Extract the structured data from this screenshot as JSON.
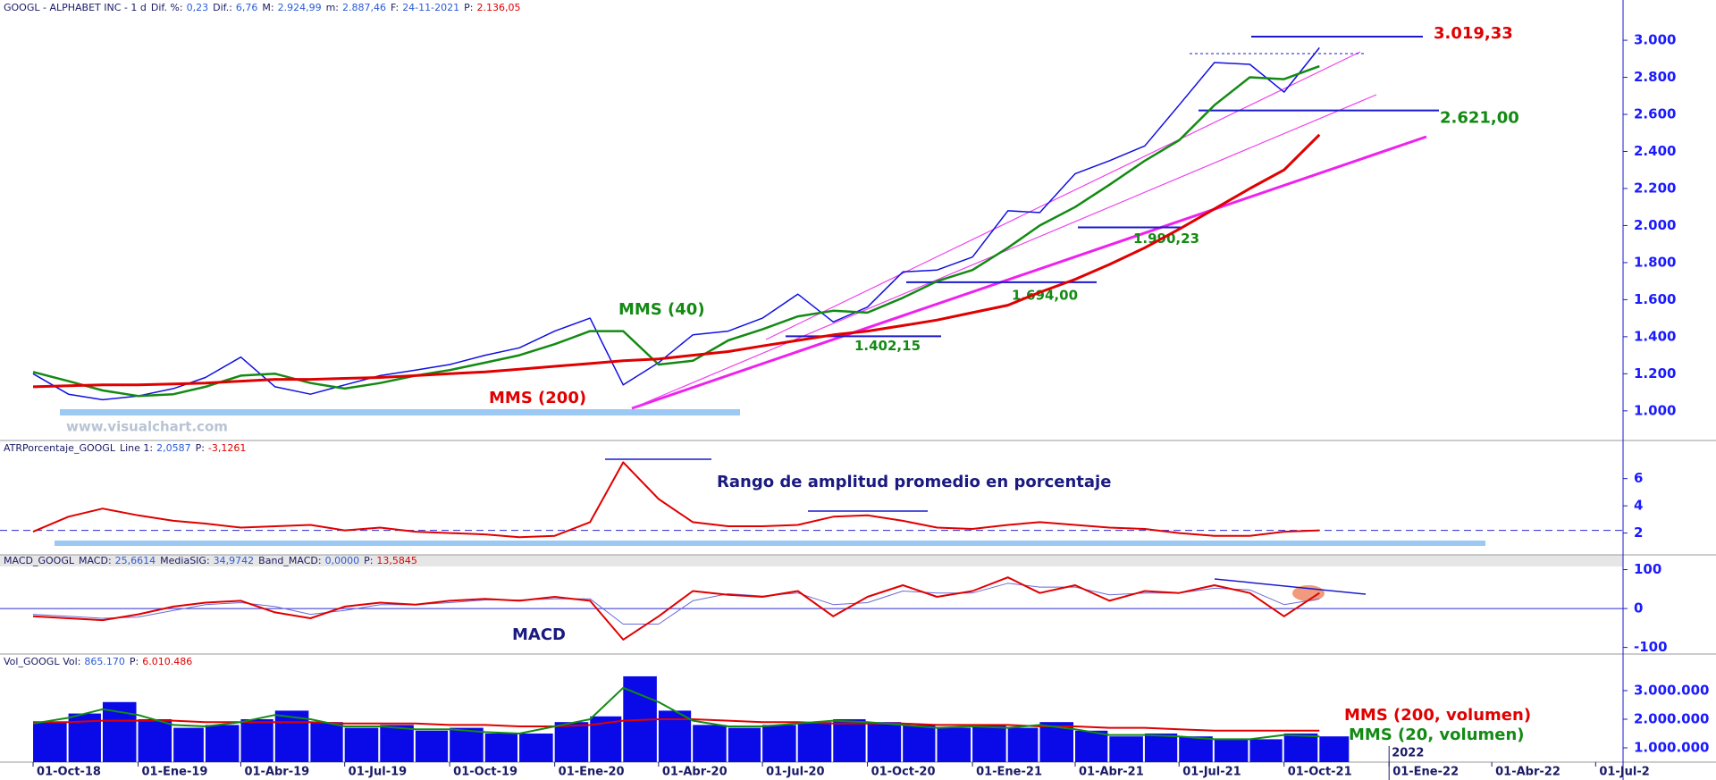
{
  "chart_data": [
    {
      "type": "line",
      "title": "GOOGL - ALPHABET INC - 1 d",
      "stats": [
        {
          "key": "Dif. %:",
          "value": "0,23"
        },
        {
          "key": "Dif.:",
          "value": "6,76"
        },
        {
          "key": "M:",
          "value": "2.924,99"
        },
        {
          "key": "m:",
          "value": "2.887,46"
        },
        {
          "key": "F:",
          "value": "24-11-2021"
        },
        {
          "key": "P:",
          "value": "2.136,05"
        }
      ],
      "watermark": "www.visualchart.com",
      "xlim": [
        "2018-09-02",
        "2022-07-25"
      ],
      "x": [
        "2018-10-01",
        "2018-11-01",
        "2018-12-01",
        "2019-01-01",
        "2019-02-01",
        "2019-03-01",
        "2019-04-01",
        "2019-05-01",
        "2019-06-01",
        "2019-07-01",
        "2019-08-01",
        "2019-09-01",
        "2019-10-01",
        "2019-11-01",
        "2019-12-01",
        "2020-01-01",
        "2020-02-01",
        "2020-03-01",
        "2020-04-01",
        "2020-05-01",
        "2020-06-01",
        "2020-07-01",
        "2020-08-01",
        "2020-09-01",
        "2020-10-01",
        "2020-11-01",
        "2020-12-01",
        "2021-01-01",
        "2021-02-01",
        "2021-03-01",
        "2021-04-01",
        "2021-05-01",
        "2021-06-01",
        "2021-07-01",
        "2021-08-01",
        "2021-09-01",
        "2021-10-01",
        "2021-11-01"
      ],
      "series": [
        {
          "name": "GOOGL",
          "color": "#1010e0",
          "width": 1.5,
          "values": [
            1200,
            1090,
            1060,
            1080,
            1120,
            1180,
            1290,
            1130,
            1090,
            1140,
            1190,
            1220,
            1250,
            1300,
            1340,
            1430,
            1500,
            1140,
            1260,
            1410,
            1430,
            1500,
            1630,
            1480,
            1560,
            1750,
            1760,
            1830,
            2080,
            2070,
            2280,
            2350,
            2430,
            2650,
            2880,
            2870,
            2720,
            2960
          ]
        },
        {
          "name": "MMS (40)",
          "color": "#138a13",
          "width": 2.5,
          "values": [
            1210,
            1160,
            1110,
            1080,
            1090,
            1130,
            1190,
            1200,
            1150,
            1120,
            1150,
            1190,
            1220,
            1260,
            1300,
            1360,
            1430,
            1430,
            1250,
            1270,
            1380,
            1440,
            1510,
            1540,
            1530,
            1610,
            1700,
            1760,
            1880,
            2000,
            2100,
            2220,
            2350,
            2460,
            2650,
            2800,
            2790,
            2860
          ]
        },
        {
          "name": "MMS (200)",
          "color": "#e00000",
          "width": 3,
          "values": [
            1130,
            1135,
            1140,
            1140,
            1145,
            1150,
            1160,
            1170,
            1170,
            1175,
            1180,
            1190,
            1200,
            1210,
            1225,
            1240,
            1255,
            1270,
            1280,
            1300,
            1320,
            1350,
            1380,
            1410,
            1430,
            1460,
            1490,
            1530,
            1570,
            1640,
            1710,
            1790,
            1880,
            1980,
            2090,
            2200,
            2300,
            2490
          ]
        }
      ],
      "levels": [
        {
          "value": 3019.33,
          "label": "3.019,33",
          "color": "#e00000"
        },
        {
          "value": 2621,
          "label": "2.621,00",
          "color": "#138a13"
        },
        {
          "value": 1990.23,
          "label": "1.990,23",
          "color": "#138a13"
        },
        {
          "value": 1694,
          "label": "1.694,00",
          "color": "#138a13"
        },
        {
          "value": 1402.15,
          "label": "1.402,15",
          "color": "#138a13"
        }
      ],
      "ylim": [
        840,
        3145
      ],
      "yticks": [
        {
          "value": 1000,
          "label": "1.000"
        },
        {
          "value": 1200,
          "label": "1.200"
        },
        {
          "value": 1400,
          "label": "1.400"
        },
        {
          "value": 1600,
          "label": "1.600"
        },
        {
          "value": 1800,
          "label": "1.800"
        },
        {
          "value": 2000,
          "label": "2.000"
        },
        {
          "value": 2200,
          "label": "2.200"
        },
        {
          "value": 2400,
          "label": "2.400"
        },
        {
          "value": 2600,
          "label": "2.600"
        },
        {
          "value": 2800,
          "label": "2.800"
        },
        {
          "value": 3000,
          "label": "3.000"
        }
      ]
    },
    {
      "type": "line",
      "title": "ATRPorcentaje_GOOGL",
      "stats": [
        {
          "key": "Line 1:",
          "value": "2,0587"
        },
        {
          "key": "P:",
          "value": "-3,1261"
        }
      ],
      "annotation": "Rango de amplitud promedio en porcentaje",
      "xlim": [
        "2018-09-02",
        "2022-07-25"
      ],
      "x": [
        "2018-10-01",
        "2018-11-01",
        "2018-12-01",
        "2019-01-01",
        "2019-02-01",
        "2019-03-01",
        "2019-04-01",
        "2019-05-01",
        "2019-06-01",
        "2019-07-01",
        "2019-08-01",
        "2019-09-01",
        "2019-10-01",
        "2019-11-01",
        "2019-12-01",
        "2020-01-01",
        "2020-02-01",
        "2020-03-01",
        "2020-04-01",
        "2020-05-01",
        "2020-06-01",
        "2020-07-01",
        "2020-08-01",
        "2020-09-01",
        "2020-10-01",
        "2020-11-01",
        "2020-12-01",
        "2021-01-01",
        "2021-02-01",
        "2021-03-01",
        "2021-04-01",
        "2021-05-01",
        "2021-06-01",
        "2021-07-01",
        "2021-08-01",
        "2021-09-01",
        "2021-10-01",
        "2021-11-01"
      ],
      "series": [
        {
          "color": "#e00000",
          "width": 2,
          "values": [
            2.1,
            3.2,
            3.8,
            3.3,
            2.9,
            2.7,
            2.4,
            2.5,
            2.6,
            2.2,
            2.4,
            2.1,
            2.0,
            1.9,
            1.7,
            1.8,
            2.8,
            7.2,
            4.5,
            2.8,
            2.5,
            2.5,
            2.6,
            3.2,
            3.3,
            2.9,
            2.4,
            2.3,
            2.6,
            2.8,
            2.6,
            2.4,
            2.3,
            2.0,
            1.8,
            1.8,
            2.1,
            2.2
          ]
        }
      ],
      "hline": 2.2,
      "ylim": [
        0.4,
        8.8
      ],
      "yticks": [
        2,
        4,
        6
      ]
    },
    {
      "type": "line",
      "title": "MACD_GOOGL",
      "stats": [
        {
          "key": "MACD:",
          "value": "25,6614"
        },
        {
          "key": "MediaSIG:",
          "value": "34,9742"
        },
        {
          "key": "Band_MACD:",
          "value": "0,0000"
        },
        {
          "key": "P:",
          "value": "13,5845"
        }
      ],
      "annotation": "MACD",
      "xlim": [
        "2018-09-02",
        "2022-07-25"
      ],
      "x": [
        "2018-10-01",
        "2018-11-01",
        "2018-12-01",
        "2019-01-01",
        "2019-02-01",
        "2019-03-01",
        "2019-04-01",
        "2019-05-01",
        "2019-06-01",
        "2019-07-01",
        "2019-08-01",
        "2019-09-01",
        "2019-10-01",
        "2019-11-01",
        "2019-12-01",
        "2020-01-01",
        "2020-02-01",
        "2020-03-01",
        "2020-04-01",
        "2020-05-01",
        "2020-06-01",
        "2020-07-01",
        "2020-08-01",
        "2020-09-01",
        "2020-10-01",
        "2020-11-01",
        "2020-12-01",
        "2021-01-01",
        "2021-02-01",
        "2021-03-01",
        "2021-04-01",
        "2021-05-01",
        "2021-06-01",
        "2021-07-01",
        "2021-08-01",
        "2021-09-01",
        "2021-10-01",
        "2021-11-01"
      ],
      "series": [
        {
          "color": "#6a6ad8",
          "width": 1,
          "values": [
            -15,
            -20,
            -25,
            -22,
            -5,
            10,
            15,
            5,
            -15,
            -5,
            10,
            10,
            15,
            22,
            22,
            25,
            25,
            -40,
            -40,
            20,
            38,
            32,
            40,
            10,
            15,
            45,
            40,
            40,
            65,
            55,
            55,
            35,
            40,
            40,
            52,
            48,
            10,
            25
          ]
        },
        {
          "color": "#e00000",
          "width": 2,
          "values": [
            -20,
            -25,
            -30,
            -15,
            5,
            15,
            20,
            -10,
            -25,
            5,
            15,
            10,
            20,
            25,
            20,
            30,
            20,
            -80,
            -20,
            45,
            35,
            30,
            45,
            -20,
            30,
            60,
            30,
            45,
            80,
            40,
            60,
            20,
            45,
            40,
            60,
            40,
            -20,
            40
          ]
        }
      ],
      "hline": 0,
      "ylim": [
        -117,
        138
      ],
      "yticks": [
        100,
        0,
        -100
      ]
    },
    {
      "type": "bar",
      "title": "Vol_GOOGL",
      "stats": [
        {
          "key": "Vol:",
          "value": "865.170"
        },
        {
          "key": "P:",
          "value": "6.010.486"
        }
      ],
      "xlim": [
        "2018-09-02",
        "2022-07-25"
      ],
      "x": [
        "2018-10-01",
        "2018-11-01",
        "2018-12-01",
        "2019-01-01",
        "2019-02-01",
        "2019-03-01",
        "2019-04-01",
        "2019-05-01",
        "2019-06-01",
        "2019-07-01",
        "2019-08-01",
        "2019-09-01",
        "2019-10-01",
        "2019-11-01",
        "2019-12-01",
        "2020-01-01",
        "2020-02-01",
        "2020-03-01",
        "2020-04-01",
        "2020-05-01",
        "2020-06-01",
        "2020-07-01",
        "2020-08-01",
        "2020-09-01",
        "2020-10-01",
        "2020-11-01",
        "2020-12-01",
        "2021-01-01",
        "2021-02-01",
        "2021-03-01",
        "2021-04-01",
        "2021-05-01",
        "2021-06-01",
        "2021-07-01",
        "2021-08-01",
        "2021-09-01",
        "2021-10-01",
        "2021-11-01"
      ],
      "color": "#0a0ae8",
      "values": [
        1900000,
        2200000,
        2600000,
        2000000,
        1700000,
        1800000,
        2000000,
        2300000,
        1900000,
        1700000,
        1800000,
        1600000,
        1700000,
        1500000,
        1500000,
        1900000,
        2100000,
        3500000,
        2300000,
        1800000,
        1700000,
        1800000,
        1900000,
        2000000,
        1900000,
        1800000,
        1700000,
        1800000,
        1700000,
        1900000,
        1600000,
        1400000,
        1500000,
        1400000,
        1300000,
        1300000,
        1500000,
        1400000
      ],
      "series": [
        {
          "name": "MMS (200, volumen)",
          "color": "#e00000",
          "width": 2,
          "values": [
            1900000,
            1900000,
            1950000,
            1950000,
            1950000,
            1900000,
            1900000,
            1900000,
            1900000,
            1850000,
            1850000,
            1850000,
            1800000,
            1800000,
            1750000,
            1750000,
            1800000,
            1950000,
            2000000,
            2000000,
            1950000,
            1900000,
            1900000,
            1850000,
            1850000,
            1850000,
            1800000,
            1800000,
            1800000,
            1750000,
            1750000,
            1700000,
            1700000,
            1650000,
            1600000,
            1600000,
            1600000,
            1600000
          ]
        },
        {
          "name": "MMS (20, volumen)",
          "color": "#138a13",
          "width": 2,
          "values": [
            1850000,
            2050000,
            2350000,
            2150000,
            1800000,
            1750000,
            1900000,
            2150000,
            2000000,
            1750000,
            1750000,
            1650000,
            1650000,
            1550000,
            1500000,
            1750000,
            2000000,
            3100000,
            2600000,
            1950000,
            1750000,
            1750000,
            1850000,
            1950000,
            1900000,
            1800000,
            1700000,
            1750000,
            1700000,
            1800000,
            1650000,
            1450000,
            1450000,
            1400000,
            1300000,
            1300000,
            1450000,
            1400000
          ]
        }
      ],
      "ylim": [
        500000,
        4280000
      ],
      "yticks": [
        {
          "value": 1000000,
          "label": "1.000.000"
        },
        {
          "value": 2000000,
          "label": "2.000.000"
        },
        {
          "value": 3000000,
          "label": "3.000.000"
        }
      ],
      "xticks": [
        {
          "value": "2018-10-01",
          "label": "01-Oct-18"
        },
        {
          "value": "2019-01-01",
          "label": "01-Ene-19"
        },
        {
          "value": "2019-04-01",
          "label": "01-Abr-19"
        },
        {
          "value": "2019-07-01",
          "label": "01-Jul-19"
        },
        {
          "value": "2019-10-01",
          "label": "01-Oct-19"
        },
        {
          "value": "2020-01-01",
          "label": "01-Ene-20"
        },
        {
          "value": "2020-04-01",
          "label": "01-Abr-20"
        },
        {
          "value": "2020-07-01",
          "label": "01-Jul-20"
        },
        {
          "value": "2020-10-01",
          "label": "01-Oct-20"
        },
        {
          "value": "2021-01-01",
          "label": "01-Ene-21"
        },
        {
          "value": "2021-04-01",
          "label": "01-Abr-21"
        },
        {
          "value": "2021-07-01",
          "label": "01-Jul-21"
        },
        {
          "value": "2021-10-01",
          "label": "01-Oct-21"
        },
        {
          "value": "2022-01-01",
          "label": "01-Ene-22"
        },
        {
          "value": "2022-04-01",
          "label": "01-Abr-22"
        },
        {
          "value": "2022-07-01",
          "label": "01-Jul-2"
        }
      ],
      "year_marker": {
        "value": "2022-01-01",
        "label": "2022"
      }
    }
  ]
}
